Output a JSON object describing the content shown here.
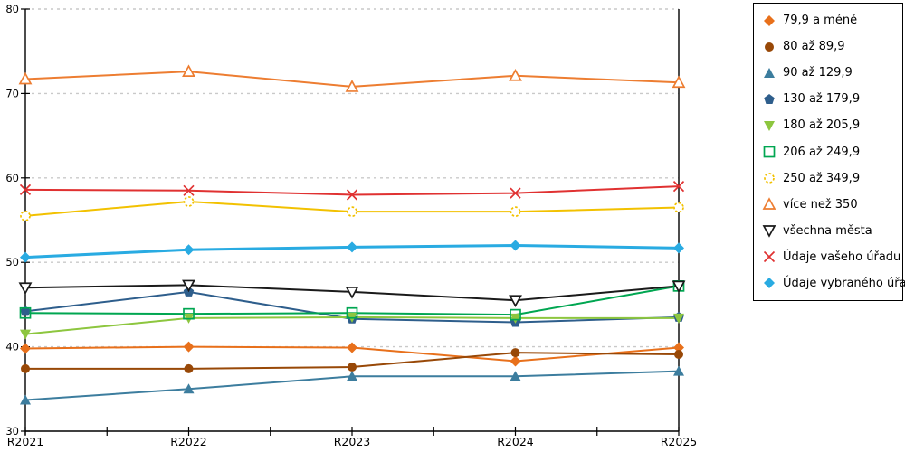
{
  "chart_data": {
    "type": "line",
    "title": "",
    "xlabel": "",
    "ylabel": "",
    "categories": [
      "R2021",
      "R2022",
      "R2023",
      "R2024",
      "R2025"
    ],
    "ylim": [
      30,
      80
    ],
    "ytick_step": 10,
    "grid": "horizontal-dashed",
    "legend_position": "right",
    "series": [
      {
        "name": "79,9 a méně",
        "marker": "diamond",
        "fill": "filled",
        "color": "#E8701B",
        "line_width": 2,
        "values": [
          39.8,
          40.0,
          39.9,
          38.3,
          39.9
        ]
      },
      {
        "name": "80 až 89,9",
        "marker": "circle",
        "fill": "filled",
        "color": "#984807",
        "line_width": 2,
        "values": [
          37.4,
          37.4,
          37.6,
          39.3,
          39.1
        ]
      },
      {
        "name": "90 až 129,9",
        "marker": "triangle-up",
        "fill": "filled",
        "color": "#3C7D9E",
        "line_width": 2,
        "values": [
          33.7,
          35.0,
          36.5,
          36.5,
          37.1
        ]
      },
      {
        "name": "130 až 179,9",
        "marker": "pentagon",
        "fill": "filled",
        "color": "#2E5E8C",
        "line_width": 2,
        "values": [
          44.2,
          46.5,
          43.3,
          42.9,
          43.5
        ]
      },
      {
        "name": "180 až 205,9",
        "marker": "triangle-down",
        "fill": "filled",
        "color": "#8DC63F",
        "line_width": 2,
        "values": [
          41.5,
          43.4,
          43.5,
          43.4,
          43.4
        ]
      },
      {
        "name": "206 až 249,9",
        "marker": "square",
        "fill": "open",
        "color": "#00A651",
        "line_width": 2,
        "values": [
          44.0,
          43.9,
          44.0,
          43.8,
          47.2
        ]
      },
      {
        "name": "250 až 349,9",
        "marker": "circle",
        "fill": "open-dashed",
        "color": "#F2C100",
        "line_width": 2,
        "values": [
          55.5,
          57.2,
          56.0,
          56.0,
          56.5
        ]
      },
      {
        "name": "více než 350",
        "marker": "triangle-up",
        "fill": "open",
        "color": "#ED7D31",
        "line_width": 2,
        "values": [
          71.7,
          72.6,
          70.8,
          72.1,
          71.3
        ]
      },
      {
        "name": "všechna města",
        "marker": "triangle-down",
        "fill": "open",
        "color": "#1A1A1A",
        "line_width": 2,
        "values": [
          47.0,
          47.3,
          46.5,
          45.5,
          47.2
        ]
      },
      {
        "name": "Údaje vašeho úřadu",
        "marker": "x",
        "fill": "open",
        "color": "#E03131",
        "line_width": 2,
        "values": [
          58.6,
          58.5,
          58.0,
          58.2,
          59.0
        ]
      },
      {
        "name": "Údaje vybraného úřadu",
        "marker": "diamond",
        "fill": "filled",
        "color": "#29ABE2",
        "line_width": 3,
        "values": [
          50.6,
          51.5,
          51.8,
          52.0,
          51.7
        ]
      }
    ]
  },
  "axes": {
    "y_ticks": [
      "80",
      "70",
      "60",
      "50",
      "40",
      "30"
    ],
    "x_ticks": [
      "R2021",
      "R2022",
      "R2023",
      "R2024",
      "R2025"
    ]
  },
  "colors": {
    "background": "#FFFFFF",
    "grid": "#C9C9C9",
    "axis": "#000000",
    "legend_border": "#000000",
    "text": "#000000"
  }
}
